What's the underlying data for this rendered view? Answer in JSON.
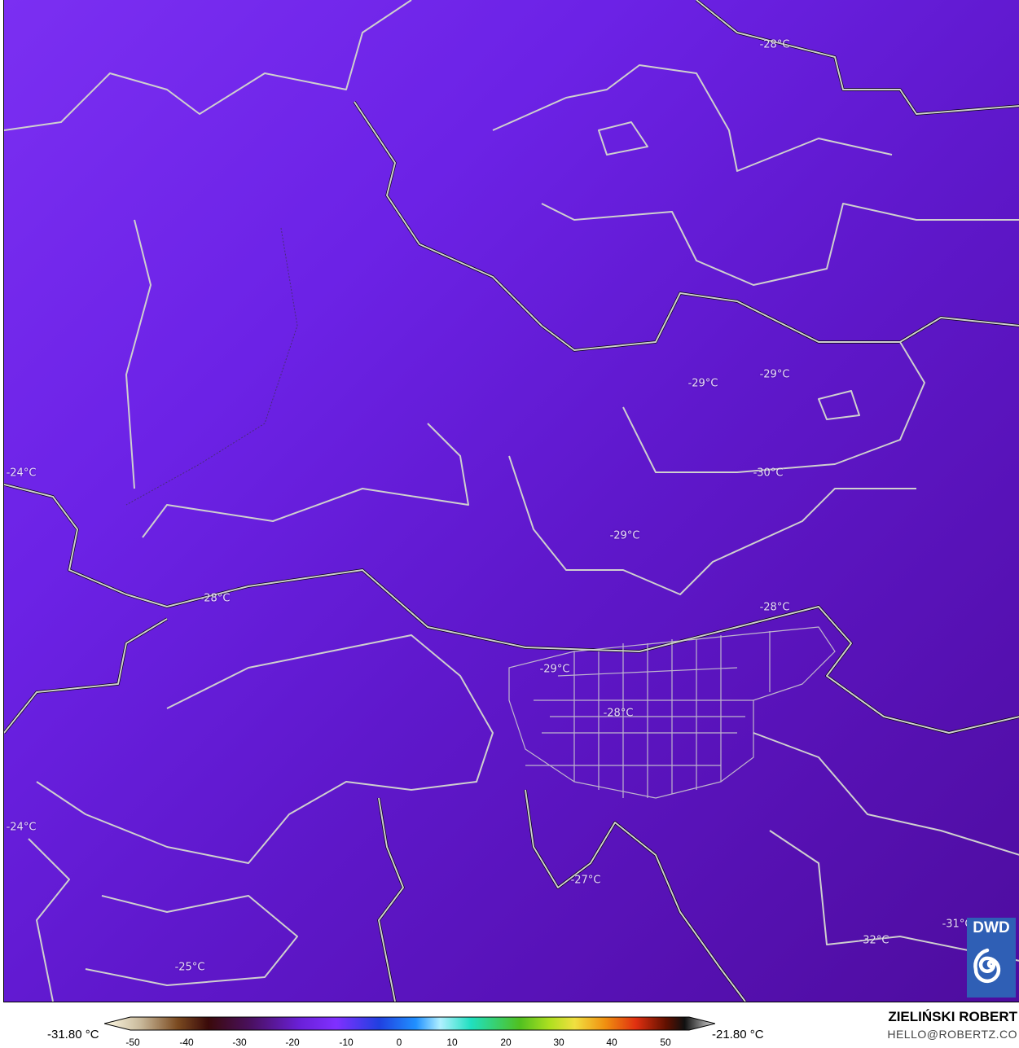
{
  "map": {
    "variable": "temperature",
    "labels": [
      "-28°C",
      "-29°C",
      "-29°C",
      "-24°C",
      "-30°C",
      "-29°C",
      "-28°C",
      "-28°C",
      "-29°C",
      "-28°C",
      "-24°C",
      "-27°C",
      "-31°C",
      "-32°C",
      "-25°C"
    ],
    "colors": {
      "background_west": "#7b2ff2",
      "background_east": "#4e0c9e",
      "borders": "#c8c8c8",
      "coast": "#000000"
    }
  },
  "logo": {
    "text": "DWD",
    "icon": "swirl-icon"
  },
  "colorbar": {
    "min_label": "-31.80 °C",
    "max_label": "-21.80 °C",
    "ticks": [
      "-50",
      "-40",
      "-30",
      "-20",
      "-10",
      "0",
      "10",
      "20",
      "30",
      "40",
      "50"
    ]
  },
  "credits": {
    "author": "ZIELIŃSKI ROBERT",
    "email": "HELLO@ROBERTZ.CO"
  }
}
